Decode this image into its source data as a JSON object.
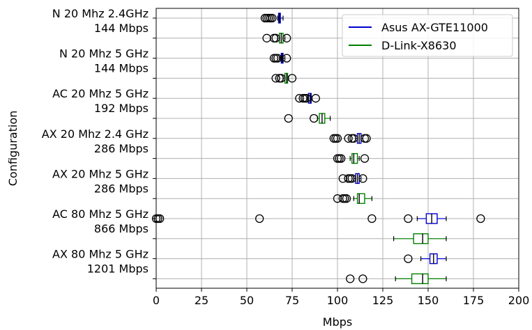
{
  "chart_data": {
    "type": "boxplot",
    "orientation": "horizontal",
    "xlabel": "Mbps",
    "ylabel": "Configuration",
    "xlim": [
      0,
      200
    ],
    "xticks": [
      0,
      25,
      50,
      75,
      100,
      125,
      150,
      175,
      200
    ],
    "grid": true,
    "legend_position": "top-right",
    "colors": {
      "asus": "#0000cc",
      "dlink": "#008000"
    },
    "series": [
      {
        "name": "Asus AX-GTE11000",
        "key": "asus"
      },
      {
        "name": "D-Link-X8630",
        "key": "dlink"
      }
    ],
    "groups": [
      {
        "label_line1": "N 20 Mhz 2.4GHz",
        "label_line2": "144 Mbps",
        "boxes": [
          {
            "series": "asus",
            "whislo": 67,
            "q1": 67.5,
            "med": 68,
            "q3": 68.5,
            "whishi": 70,
            "fliers": [
              60,
              61,
              62,
              63,
              64
            ]
          },
          {
            "series": "dlink",
            "whislo": 67,
            "q1": 68,
            "med": 69,
            "q3": 70,
            "whishi": 71,
            "fliers": [
              61,
              65,
              66,
              72
            ]
          }
        ]
      },
      {
        "label_line1": "N 20 Mhz 5 GHz",
        "label_line2": "144 Mbps",
        "boxes": [
          {
            "series": "asus",
            "whislo": 68.5,
            "q1": 69,
            "med": 69.5,
            "q3": 70,
            "whishi": 71,
            "fliers": [
              65,
              66,
              67,
              72
            ]
          },
          {
            "series": "dlink",
            "whislo": 70,
            "q1": 71,
            "med": 72,
            "q3": 72.5,
            "whishi": 73,
            "fliers": [
              66,
              68,
              69,
              75
            ]
          }
        ]
      },
      {
        "label_line1": "AC 20 Mhz 5 GHz",
        "label_line2": "192 Mbps",
        "boxes": [
          {
            "series": "asus",
            "whislo": 83.5,
            "q1": 84,
            "med": 85,
            "q3": 85.5,
            "whishi": 86,
            "fliers": [
              79,
              81,
              82,
              83,
              88
            ]
          },
          {
            "series": "dlink",
            "whislo": 89,
            "q1": 90,
            "med": 91.5,
            "q3": 93,
            "whishi": 96,
            "fliers": [
              73,
              87
            ]
          }
        ]
      },
      {
        "label_line1": "AX 20 Mhz 2.4 GHz",
        "label_line2": "286 Mbps",
        "boxes": [
          {
            "series": "asus",
            "whislo": 110,
            "q1": 111,
            "med": 112,
            "q3": 113,
            "whishi": 114,
            "fliers": [
              98,
              99,
              100,
              106,
              108,
              109,
              115,
              116
            ]
          },
          {
            "series": "dlink",
            "whislo": 107,
            "q1": 108,
            "med": 109,
            "q3": 111,
            "whishi": 112,
            "fliers": [
              100,
              101,
              102,
              115
            ]
          }
        ]
      },
      {
        "label_line1": "AX 20 Mhz 5 GHz",
        "label_line2": "286 Mbps",
        "boxes": [
          {
            "series": "asus",
            "whislo": 109,
            "q1": 110,
            "med": 111,
            "q3": 112,
            "whishi": 113,
            "fliers": [
              103,
              106,
              107,
              108,
              114
            ]
          },
          {
            "series": "dlink",
            "whislo": 109,
            "q1": 111,
            "med": 112,
            "q3": 115,
            "whishi": 119,
            "fliers": [
              100,
              103,
              104,
              105
            ]
          }
        ]
      },
      {
        "label_line1": "AC 80 Mhz 5 GHz",
        "label_line2": "866 Mbps",
        "boxes": [
          {
            "series": "asus",
            "whislo": 144,
            "q1": 149,
            "med": 152,
            "q3": 155,
            "whishi": 160,
            "fliers": [
              0,
              1,
              2,
              57,
              119,
              139,
              179
            ]
          },
          {
            "series": "dlink",
            "whislo": 131,
            "q1": 142,
            "med": 147,
            "q3": 150,
            "whishi": 160,
            "fliers": []
          }
        ]
      },
      {
        "label_line1": "AX 80 Mhz 5 GHz",
        "label_line2": "1201 Mbps",
        "boxes": [
          {
            "series": "asus",
            "whislo": 146,
            "q1": 151,
            "med": 153,
            "q3": 155,
            "whishi": 160,
            "fliers": [
              139
            ]
          },
          {
            "series": "dlink",
            "whislo": 132,
            "q1": 141,
            "med": 147,
            "q3": 150,
            "whishi": 160,
            "fliers": [
              107,
              114
            ]
          }
        ]
      }
    ]
  }
}
